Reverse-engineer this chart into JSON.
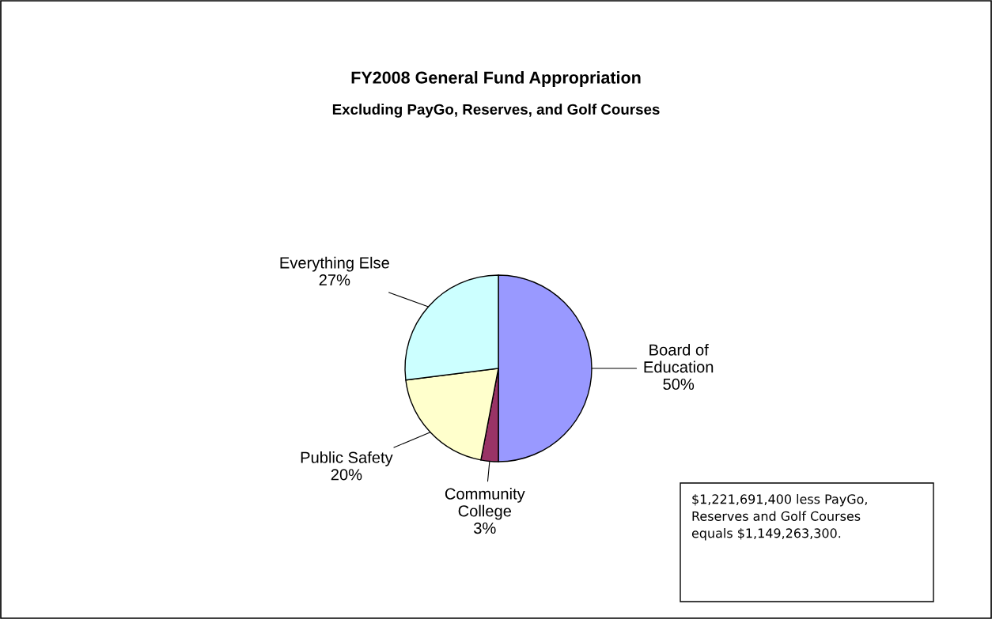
{
  "chart_data": {
    "type": "pie",
    "title": "FY2008 General Fund Appropriation",
    "subtitle": "Excluding PayGo, Reserves, and Golf Courses",
    "categories": [
      "Board of Education",
      "Community College",
      "Public Safety",
      "Everything Else"
    ],
    "values": [
      50,
      3,
      20,
      27
    ],
    "colors": [
      "#9999ff",
      "#993366",
      "#ffffcc",
      "#ccffff"
    ],
    "value_labels": [
      "50%",
      "3%",
      "20%",
      "27%"
    ],
    "legend": false,
    "annotations": [
      "$1,221,691,400 less PayGo, Reserves and Golf Courses equals $1,149,263,300."
    ]
  }
}
